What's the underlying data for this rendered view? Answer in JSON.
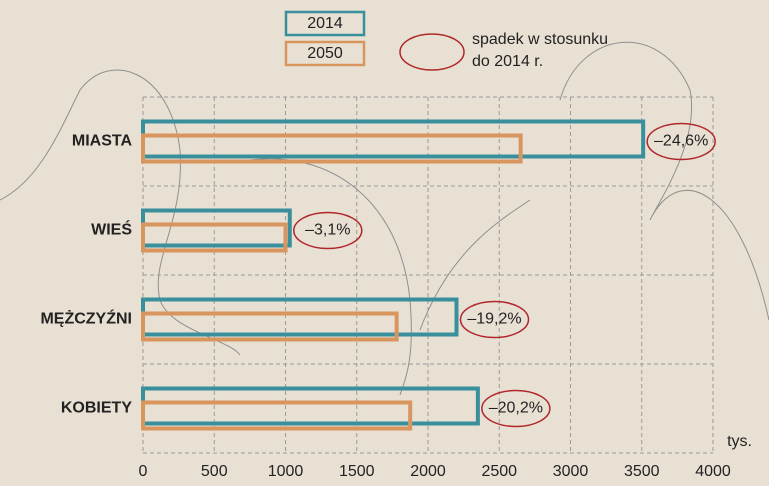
{
  "chart_data": {
    "type": "hbar",
    "categories": [
      "MIASTA",
      "WIEŚ",
      "MĘŻCZYŹNI",
      "KOBIETY"
    ],
    "series": [
      {
        "name": "2014",
        "color": "#3a8f9c",
        "values": [
          3510,
          1030,
          2200,
          2350
        ]
      },
      {
        "name": "2050",
        "color": "#d8955e",
        "values": [
          2650,
          1000,
          1780,
          1875
        ]
      }
    ],
    "change_labels": [
      "–24,6%",
      "–3,1%",
      "–19,2%",
      "–20,2%"
    ],
    "change_note": [
      "spadek w stosunku",
      "do 2014 r."
    ],
    "note_color": "#b0262b",
    "xlabel": "tys.",
    "xlim": [
      0,
      4000
    ],
    "xticks": [
      0,
      500,
      1000,
      1500,
      2000,
      2500,
      3000,
      3500,
      4000
    ],
    "grid": true
  }
}
